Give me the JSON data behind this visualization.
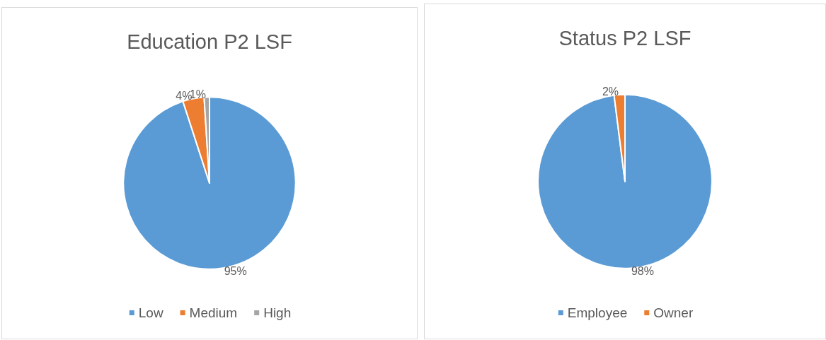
{
  "chart_data": [
    {
      "type": "pie",
      "title": "Education P2 LSF",
      "categories": [
        "Low",
        "Medium",
        "High"
      ],
      "values": [
        95,
        4,
        1
      ],
      "colors": [
        "#5b9bd5",
        "#ed7d31",
        "#a5a5a5"
      ],
      "value_labels": [
        "95%",
        "4%",
        "1%"
      ],
      "legend": "bottom"
    },
    {
      "type": "pie",
      "title": "Status P2 LSF",
      "categories": [
        "Employee",
        "Owner"
      ],
      "values": [
        98,
        2
      ],
      "colors": [
        "#5b9bd5",
        "#ed7d31"
      ],
      "value_labels": [
        "98%",
        "2%"
      ],
      "legend": "bottom"
    }
  ]
}
